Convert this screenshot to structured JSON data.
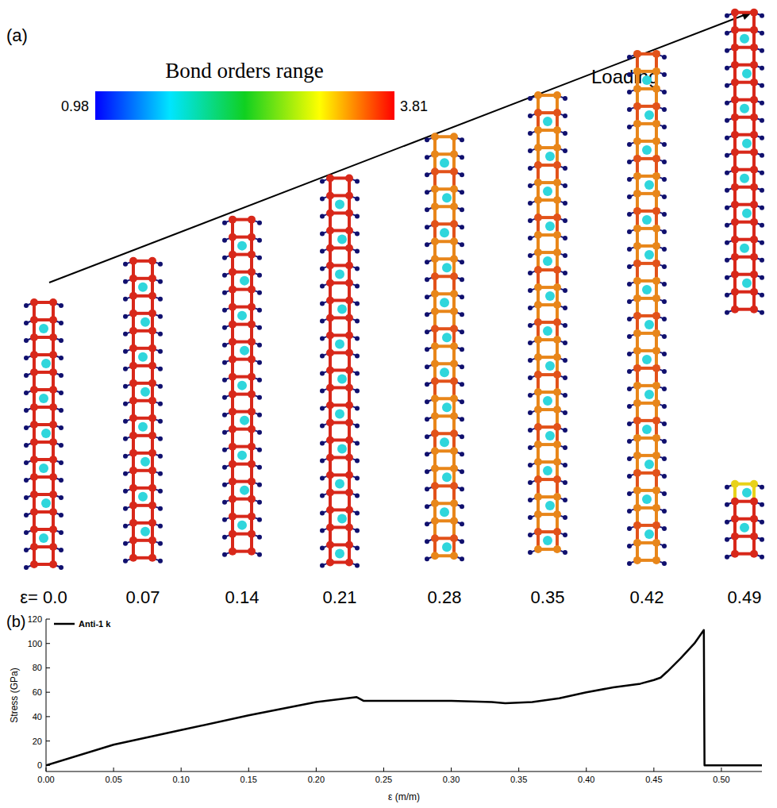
{
  "panel_a": {
    "label": "(a)",
    "arrow_label": "Loading",
    "colorbar": {
      "title": "Bond orders range",
      "range": [
        0.98,
        3.81
      ]
    },
    "strains": [
      {
        "value": 0,
        "label": "ε= 0.0"
      },
      0.07,
      0.14,
      0.21,
      0.28,
      0.35,
      0.42,
      0.49
    ]
  },
  "chart_data": {
    "type": "line",
    "panel_label": "(b)",
    "xlabel": "ε (m/m)",
    "ylabel": "Stress (GPa)",
    "x": [
      0,
      0.05,
      0.1,
      0.15,
      0.2,
      0.23,
      0.235,
      0.25,
      0.3,
      0.33,
      0.34,
      0.36,
      0.38,
      0.4,
      0.42,
      0.44,
      0.45,
      0.455,
      0.46,
      0.47,
      0.48,
      0.487,
      0.4875,
      0.49,
      0.53
    ],
    "series": [
      {
        "name": "Anti-1 k",
        "color": "#000000",
        "values": [
          0,
          17,
          29,
          41,
          52,
          56,
          53,
          53,
          53,
          52,
          51,
          52,
          55,
          60,
          64,
          67,
          70,
          72,
          77,
          88,
          100,
          111,
          0,
          0,
          0
        ]
      }
    ],
    "xlim": [
      0,
      0.53
    ],
    "ylim": [
      -5,
      120
    ],
    "xticks": [
      {
        "value": 0,
        "label": "0.00"
      },
      0.05,
      {
        "value": 0.1,
        "label": "0.10"
      },
      0.15,
      {
        "value": 0.2,
        "label": "0.20"
      },
      0.25,
      {
        "value": 0.3,
        "label": "0.30"
      },
      0.35,
      {
        "value": 0.4,
        "label": "0.40"
      },
      0.45,
      {
        "value": 0.5,
        "label": "0.50"
      }
    ],
    "yticks": [
      0,
      20,
      40,
      60,
      80,
      100,
      120
    ],
    "legend": "upper left"
  }
}
